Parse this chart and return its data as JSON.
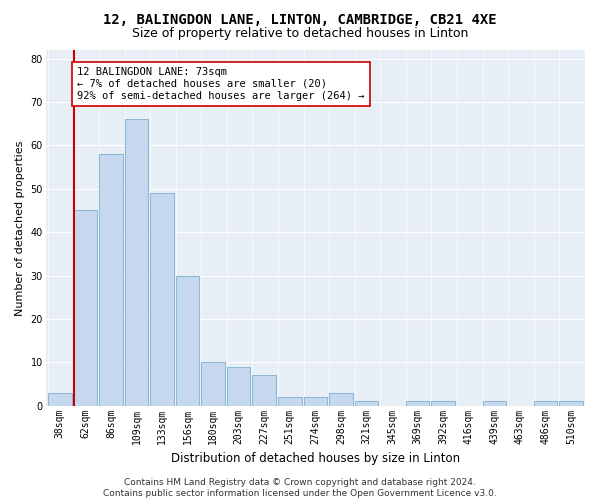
{
  "title1": "12, BALINGDON LANE, LINTON, CAMBRIDGE, CB21 4XE",
  "title2": "Size of property relative to detached houses in Linton",
  "xlabel": "Distribution of detached houses by size in Linton",
  "ylabel": "Number of detached properties",
  "footer1": "Contains HM Land Registry data © Crown copyright and database right 2024.",
  "footer2": "Contains public sector information licensed under the Open Government Licence v3.0.",
  "bar_labels": [
    "38sqm",
    "62sqm",
    "86sqm",
    "109sqm",
    "133sqm",
    "156sqm",
    "180sqm",
    "203sqm",
    "227sqm",
    "251sqm",
    "274sqm",
    "298sqm",
    "321sqm",
    "345sqm",
    "369sqm",
    "392sqm",
    "416sqm",
    "439sqm",
    "463sqm",
    "486sqm",
    "510sqm"
  ],
  "bar_values": [
    3,
    45,
    58,
    66,
    49,
    30,
    10,
    9,
    7,
    2,
    2,
    3,
    1,
    0,
    1,
    1,
    0,
    1,
    0,
    1,
    1
  ],
  "bar_color": "#c5d8ed",
  "bar_edgecolor": "#7aafd4",
  "ylim": [
    0,
    82
  ],
  "yticks": [
    0,
    10,
    20,
    30,
    40,
    50,
    60,
    70,
    80
  ],
  "red_line_color": "#cc0000",
  "annotation_text": "12 BALINGDON LANE: 73sqm\n← 7% of detached houses are smaller (20)\n92% of semi-detached houses are larger (264) →",
  "annotation_box_facecolor": "#ffffff",
  "annotation_box_edgecolor": "#cc0000",
  "bg_color": "#e8eef5",
  "grid_color": "#ffffff",
  "fig_facecolor": "#ffffff",
  "title1_fontsize": 10,
  "title2_fontsize": 9,
  "xlabel_fontsize": 8.5,
  "ylabel_fontsize": 8,
  "tick_fontsize": 7,
  "annotation_fontsize": 7.5,
  "footer_fontsize": 6.5,
  "red_line_bin_index": 1
}
